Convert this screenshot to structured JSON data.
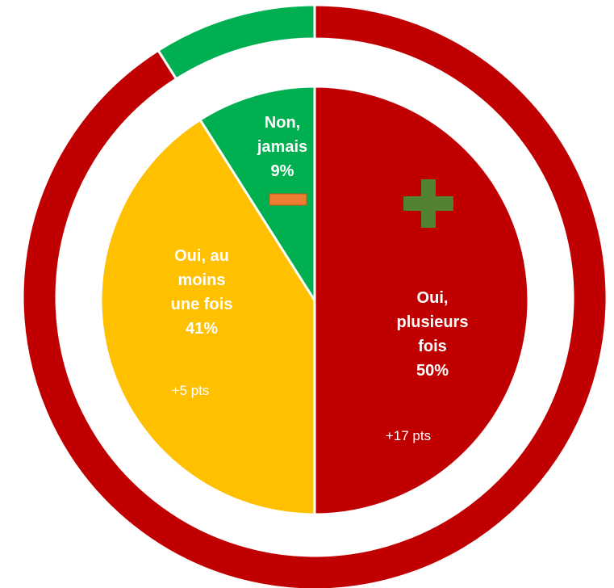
{
  "chart_data": {
    "type": "pie",
    "categories": [
      "Oui, plusieurs fois",
      "Oui, au moins une fois",
      "Non, jamais"
    ],
    "values": [
      50,
      41,
      9
    ],
    "value_labels": [
      "50%",
      "41%",
      "9%"
    ],
    "colors": [
      "#c00000",
      "#ffc000",
      "#00b050"
    ],
    "annotations": [
      "+17 pts",
      "+5 pts"
    ],
    "ring": {
      "values": [
        91,
        9
      ],
      "colors": [
        "#c00000",
        "#00b050"
      ]
    }
  }
}
